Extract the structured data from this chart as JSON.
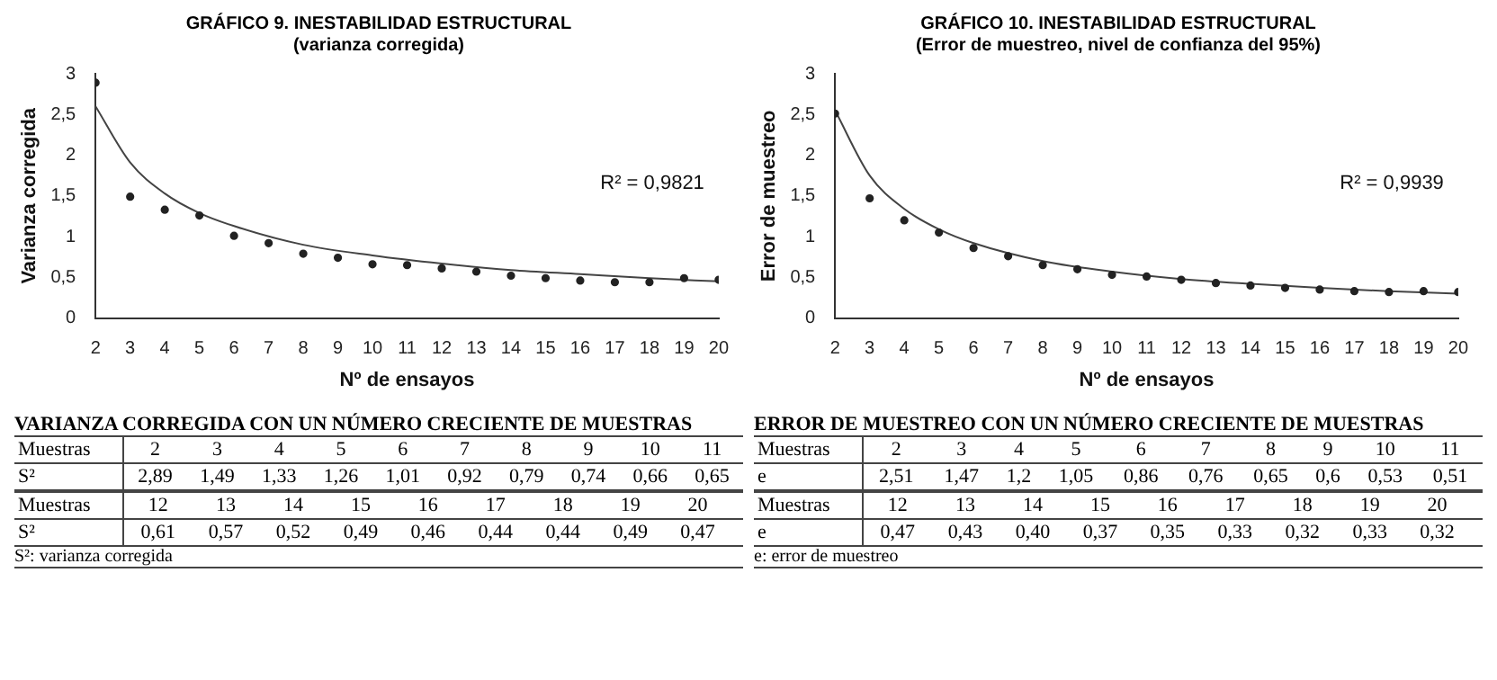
{
  "chart_data": [
    {
      "type": "scatter",
      "title": "GRÁFICO 9. INESTABILIDAD ESTRUCTURAL",
      "subtitle": "(varianza corregida)",
      "xlabel": "Nº de ensayos",
      "ylabel": "Varianza corregida",
      "x": [
        2,
        3,
        4,
        5,
        6,
        7,
        8,
        9,
        10,
        11,
        12,
        13,
        14,
        15,
        16,
        17,
        18,
        19,
        20
      ],
      "xlim": [
        2,
        20
      ],
      "xticks": [
        2,
        3,
        4,
        5,
        6,
        7,
        8,
        9,
        10,
        11,
        12,
        13,
        14,
        15,
        16,
        17,
        18,
        19,
        20
      ],
      "ylim": [
        0,
        3
      ],
      "yticks": [
        0,
        {
          "value": 0.5,
          "label": "0,5"
        },
        1,
        {
          "value": 1.5,
          "label": "1,5"
        },
        2,
        {
          "value": 2.5,
          "label": "2,5"
        },
        3
      ],
      "series": [
        {
          "color": "#222222",
          "marker": "circle",
          "values": [
            2.89,
            1.49,
            1.33,
            1.26,
            1.01,
            0.92,
            0.79,
            0.74,
            0.66,
            0.65,
            0.61,
            0.57,
            0.52,
            0.49,
            0.46,
            0.44,
            0.44,
            0.49,
            0.47
          ]
        },
        {
          "type": "line",
          "color": "#444444",
          "marker": "none",
          "x": [
            2,
            3,
            4,
            5,
            6,
            8,
            10,
            12,
            14,
            16,
            18,
            20
          ],
          "values": [
            2.6,
            1.91,
            1.53,
            1.29,
            1.13,
            0.9,
            0.77,
            0.67,
            0.59,
            0.54,
            0.49,
            0.45
          ]
        }
      ],
      "annotations": [
        "R² = 0,9821"
      ]
    },
    {
      "type": "scatter",
      "title": "GRÁFICO 10. INESTABILIDAD ESTRUCTURAL",
      "subtitle": "(Error de muestreo, nivel de confianza del 95%)",
      "xlabel": "Nº de ensayos",
      "ylabel": "Error de muestreo",
      "x": [
        2,
        3,
        4,
        5,
        6,
        7,
        8,
        9,
        10,
        11,
        12,
        13,
        14,
        15,
        16,
        17,
        18,
        19,
        20
      ],
      "xlim": [
        2,
        20
      ],
      "xticks": [
        2,
        3,
        4,
        5,
        6,
        7,
        8,
        9,
        10,
        11,
        12,
        13,
        14,
        15,
        16,
        17,
        18,
        19,
        20
      ],
      "ylim": [
        0,
        3
      ],
      "yticks": [
        0,
        {
          "value": 0.5,
          "label": "0,5"
        },
        1,
        {
          "value": 1.5,
          "label": "1,5"
        },
        2,
        {
          "value": 2.5,
          "label": "2,5"
        },
        3
      ],
      "series": [
        {
          "color": "#222222",
          "marker": "circle",
          "values": [
            2.51,
            1.47,
            1.2,
            1.05,
            0.86,
            0.76,
            0.65,
            0.6,
            0.53,
            0.51,
            0.47,
            0.43,
            0.4,
            0.37,
            0.35,
            0.33,
            0.32,
            0.33,
            0.32
          ]
        },
        {
          "type": "line",
          "color": "#444444",
          "marker": "none",
          "x": [
            2,
            3,
            4,
            5,
            6,
            8,
            10,
            12,
            14,
            16,
            18,
            20
          ],
          "values": [
            2.55,
            1.75,
            1.34,
            1.09,
            0.92,
            0.7,
            0.57,
            0.48,
            0.42,
            0.37,
            0.33,
            0.3
          ]
        }
      ],
      "annotations": [
        "R² = 0,9939"
      ]
    },
    {
      "type": "heatmap",
      "title": "VARIANZA CORREGIDA CON UN NÚMERO CRECIENTE DE MUESTRAS",
      "xlabel": "Muestras",
      "categories": [
        "2",
        "3",
        "4",
        "5",
        "6",
        "7",
        "8",
        "9",
        "10",
        "11"
      ],
      "y_categories": [
        "S²"
      ],
      "cells": [
        [
          2.89,
          1.49,
          1.33,
          1.26,
          1.01,
          0.92,
          0.79,
          0.74,
          0.66,
          0.65
        ]
      ],
      "cell_labels": [
        [
          "2,89",
          "1,49",
          "1,33",
          "1,26",
          "1,01",
          "0,92",
          "0,79",
          "0,74",
          "0,66",
          "0,65"
        ]
      ]
    },
    {
      "type": "heatmap",
      "title": "ERROR DE MUESTREO CON UN NÚMERO CRECIENTE DE MUESTRAS",
      "xlabel": "Muestras",
      "categories": [
        "2",
        "3",
        "4",
        "5",
        "6",
        "7",
        "8",
        "9",
        "10",
        "11"
      ],
      "y_categories": [
        "e"
      ],
      "cells": [
        [
          2.51,
          1.47,
          1.2,
          1.05,
          0.86,
          0.76,
          0.65,
          0.6,
          0.53,
          0.51
        ]
      ],
      "cell_labels": [
        [
          "2,51",
          "1,47",
          "1,2",
          "1,05",
          "0,86",
          "0,76",
          "0,65",
          "0,6",
          "0,53",
          "0,51"
        ]
      ]
    },
    {
      "type": "heatmap",
      "xlabel": "Muestras",
      "categories": [
        "12",
        "13",
        "14",
        "15",
        "16",
        "17",
        "18",
        "19",
        "20"
      ],
      "y_categories": [
        "S²"
      ],
      "cells": [
        [
          0.61,
          0.57,
          0.52,
          0.49,
          0.46,
          0.44,
          0.44,
          0.49,
          0.47
        ]
      ],
      "cell_labels": [
        [
          "0,61",
          "0,57",
          "0,52",
          "0,49",
          "0,46",
          "0,44",
          "0,44",
          "0,49",
          "0,47"
        ]
      ],
      "annotations": [
        "S²: varianza corregida"
      ]
    },
    {
      "type": "heatmap",
      "xlabel": "Muestras",
      "categories": [
        "12",
        "13",
        "14",
        "15",
        "16",
        "17",
        "18",
        "19",
        "20"
      ],
      "y_categories": [
        "e"
      ],
      "cells": [
        [
          0.47,
          0.43,
          0.4,
          0.37,
          0.35,
          0.33,
          0.32,
          0.33,
          0.32
        ]
      ],
      "cell_labels": [
        [
          "0,47",
          "0,43",
          "0,40",
          "0,37",
          "0,35",
          "0,33",
          "0,32",
          "0,33",
          "0,32"
        ]
      ],
      "annotations": [
        "e: error de muestreo"
      ]
    }
  ]
}
